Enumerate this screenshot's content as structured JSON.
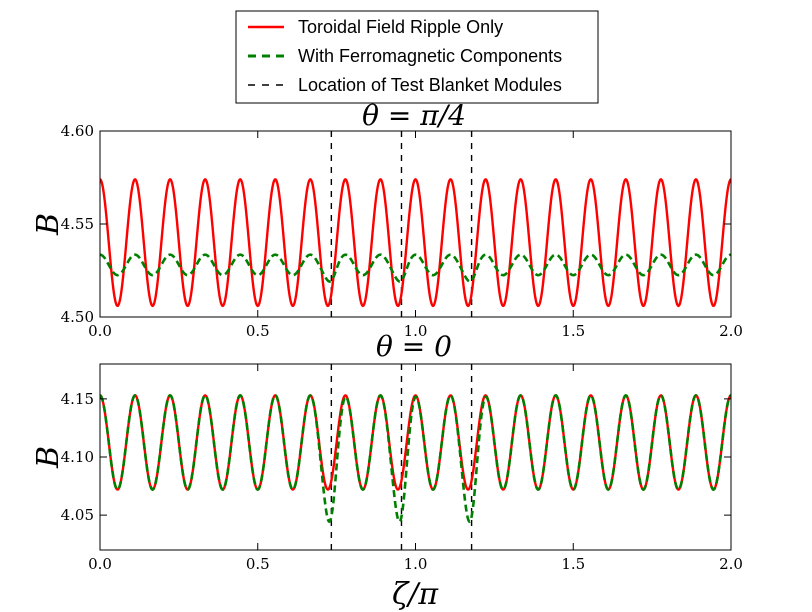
{
  "legend": {
    "entries": [
      {
        "label": "Toroidal Field Ripple Only",
        "color": "#ff0000",
        "style": "solid"
      },
      {
        "label": "With Ferromagnetic Components",
        "color": "#008000",
        "style": "dashed"
      },
      {
        "label": "Location of Test Blanket Modules",
        "color": "#000000",
        "style": "dashed-thin"
      }
    ]
  },
  "chart_data": [
    {
      "type": "line",
      "title": "θ = π/4",
      "xlabel": "",
      "ylabel": "B",
      "xlim": [
        0.0,
        2.0
      ],
      "ylim": [
        4.5,
        4.6
      ],
      "xticks": [
        "0.0",
        "0.5",
        "1.0",
        "1.5",
        "2.0"
      ],
      "yticks": [
        "4.50",
        "4.55",
        "4.60"
      ],
      "grid": false,
      "vlines": [
        0.7333,
        0.9556,
        1.1778
      ],
      "series": [
        {
          "name": "Toroidal Field Ripple Only",
          "color": "#ff0000",
          "mean": 4.54,
          "amplitude": 0.034,
          "periods": 18,
          "phase": 0.0,
          "tbm_dip_depth": 0.0,
          "tbm_dip_width": 0.02
        },
        {
          "name": "With Ferromagnetic Components",
          "color": "#008000",
          "mean": 4.528,
          "amplitude": 0.0055,
          "periods": 18,
          "phase": 0.0,
          "tbm_dip_depth": 0.004,
          "tbm_dip_width": 0.02
        }
      ]
    },
    {
      "type": "line",
      "title": "θ = 0",
      "xlabel": "ζ/π",
      "ylabel": "B",
      "xlim": [
        0.0,
        2.0
      ],
      "ylim": [
        4.02,
        4.18
      ],
      "xticks": [
        "0.0",
        "0.5",
        "1.0",
        "1.5",
        "2.0"
      ],
      "yticks": [
        "4.05",
        "4.10",
        "4.15"
      ],
      "grid": false,
      "vlines": [
        0.7333,
        0.9556,
        1.1778
      ],
      "series": [
        {
          "name": "Toroidal Field Ripple Only",
          "color": "#ff0000",
          "mean": 4.1125,
          "amplitude": 0.0405,
          "periods": 18,
          "phase": 0.0,
          "tbm_dip_depth": 0.0,
          "tbm_dip_width": 0.02
        },
        {
          "name": "With Ferromagnetic Components",
          "color": "#008000",
          "mean": 4.1125,
          "amplitude": 0.0405,
          "periods": 18,
          "phase": 0.0,
          "tbm_dip_depth": 0.031,
          "tbm_dip_width": 0.025
        }
      ]
    }
  ]
}
